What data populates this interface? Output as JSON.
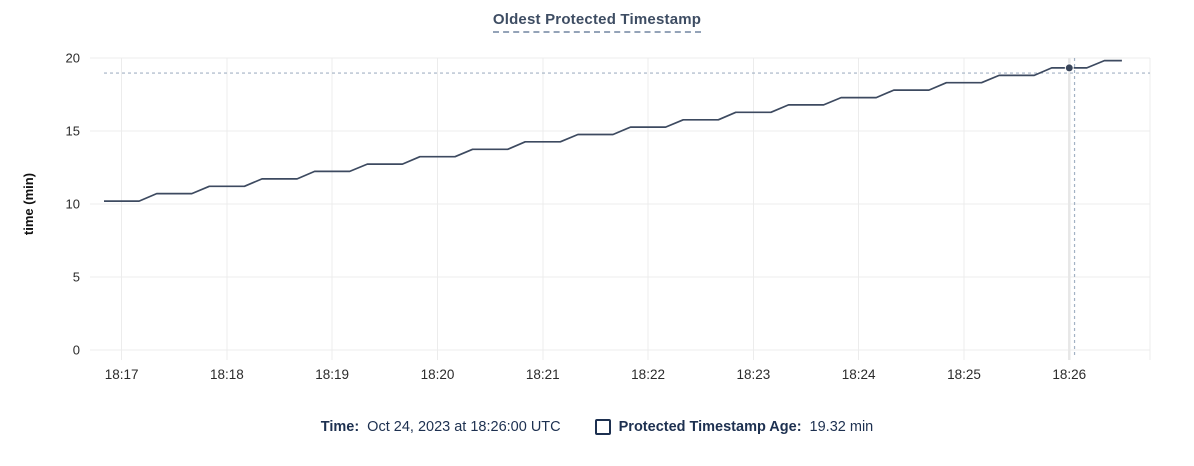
{
  "header": {
    "title": "Oldest Protected Timestamp"
  },
  "footer": {
    "time_label": "Time:",
    "time_value": "Oct 24, 2023 at 18:26:00 UTC",
    "series_label": "Protected Timestamp Age:",
    "series_value": "19.32 min",
    "series_checkbox_checked": false
  },
  "colors": {
    "line": "#3d4a60",
    "dot": "#39455a",
    "crosshair": "#a3b2c4",
    "grid": "#ececec",
    "guideline": "#e7e7e7",
    "axis_text": "#2b2b2b",
    "ylabel_text": "#111111",
    "title_text": "#3e4d63",
    "footer_text": "#1d3050"
  },
  "chart_data": {
    "type": "line",
    "title": "Oldest Protected Timestamp",
    "xlabel": "",
    "ylabel": "time (min)",
    "ylim": [
      0,
      20
    ],
    "yticks": [
      0,
      5,
      10,
      15,
      20
    ],
    "x_tick_labels": [
      "18:17",
      "18:18",
      "18:19",
      "18:20",
      "18:21",
      "18:22",
      "18:23",
      "18:24",
      "18:25",
      "18:26"
    ],
    "x_range": [
      "18:16:42",
      "18:26:46"
    ],
    "grid": true,
    "legend_position": "bottom",
    "series": [
      {
        "name": "Protected Timestamp Age",
        "unit": "min",
        "points": [
          [
            "18:16:50",
            10.2
          ],
          [
            "18:17:00",
            10.2
          ],
          [
            "18:17:10",
            10.2
          ],
          [
            "18:17:20",
            10.71
          ],
          [
            "18:17:30",
            10.71
          ],
          [
            "18:17:40",
            10.71
          ],
          [
            "18:17:50",
            11.21
          ],
          [
            "18:18:00",
            11.21
          ],
          [
            "18:18:10",
            11.21
          ],
          [
            "18:18:20",
            11.72
          ],
          [
            "18:18:30",
            11.72
          ],
          [
            "18:18:40",
            11.72
          ],
          [
            "18:18:50",
            12.23
          ],
          [
            "18:19:00",
            12.23
          ],
          [
            "18:19:10",
            12.23
          ],
          [
            "18:19:20",
            12.73
          ],
          [
            "18:19:30",
            12.73
          ],
          [
            "18:19:40",
            12.73
          ],
          [
            "18:19:50",
            13.24
          ],
          [
            "18:20:00",
            13.24
          ],
          [
            "18:20:10",
            13.24
          ],
          [
            "18:20:20",
            13.75
          ],
          [
            "18:20:30",
            13.75
          ],
          [
            "18:20:40",
            13.75
          ],
          [
            "18:20:50",
            14.26
          ],
          [
            "18:21:00",
            14.26
          ],
          [
            "18:21:10",
            14.26
          ],
          [
            "18:21:20",
            14.76
          ],
          [
            "18:21:30",
            14.76
          ],
          [
            "18:21:40",
            14.76
          ],
          [
            "18:21:50",
            15.27
          ],
          [
            "18:22:00",
            15.27
          ],
          [
            "18:22:10",
            15.27
          ],
          [
            "18:22:20",
            15.77
          ],
          [
            "18:22:30",
            15.77
          ],
          [
            "18:22:40",
            15.77
          ],
          [
            "18:22:50",
            16.28
          ],
          [
            "18:23:00",
            16.28
          ],
          [
            "18:23:10",
            16.28
          ],
          [
            "18:23:20",
            16.79
          ],
          [
            "18:23:30",
            16.79
          ],
          [
            "18:23:40",
            16.79
          ],
          [
            "18:23:50",
            17.29
          ],
          [
            "18:24:00",
            17.29
          ],
          [
            "18:24:10",
            17.29
          ],
          [
            "18:24:20",
            17.8
          ],
          [
            "18:24:30",
            17.8
          ],
          [
            "18:24:40",
            17.8
          ],
          [
            "18:24:50",
            18.31
          ],
          [
            "18:25:00",
            18.31
          ],
          [
            "18:25:10",
            18.31
          ],
          [
            "18:25:20",
            18.81
          ],
          [
            "18:25:30",
            18.81
          ],
          [
            "18:25:40",
            18.81
          ],
          [
            "18:25:50",
            19.32
          ],
          [
            "18:26:00",
            19.32
          ],
          [
            "18:26:10",
            19.32
          ],
          [
            "18:26:20",
            19.82
          ],
          [
            "18:26:30",
            19.82
          ]
        ]
      }
    ],
    "highlighted_point": {
      "time": "18:26:00",
      "value": 19.32,
      "display_value": "19.32 min",
      "display_time": "Oct 24, 2023 at 18:26:00 UTC"
    },
    "crosshair": {
      "time": "18:26:03",
      "value": 18.97
    }
  }
}
